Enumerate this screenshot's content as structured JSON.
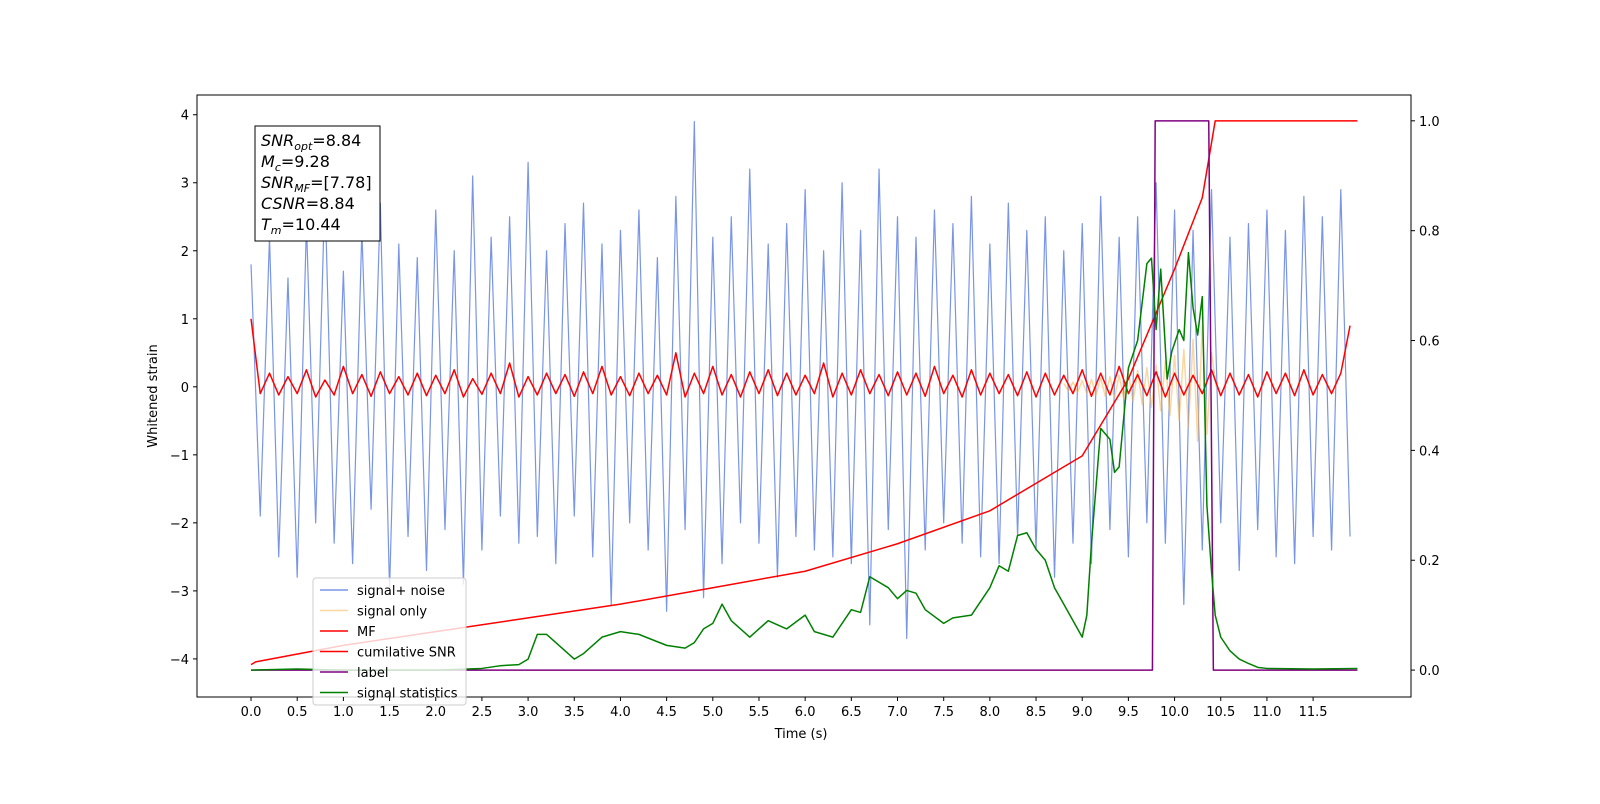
{
  "chart_data": {
    "type": "line",
    "xlabel": "Time (s)",
    "ylabel": "Whitened strain",
    "xlim": [
      -0.585,
      12.56
    ],
    "ylim": [
      -4.56,
      4.29
    ],
    "y2lim": [
      -0.049,
      1.047
    ],
    "xticks": [
      {
        "value": 0,
        "label": "0.0"
      },
      0.5,
      {
        "value": 1,
        "label": "1.0"
      },
      1.5,
      {
        "value": 2,
        "label": "2.0"
      },
      2.5,
      {
        "value": 3,
        "label": "3.0"
      },
      3.5,
      {
        "value": 4,
        "label": "4.0"
      },
      4.5,
      {
        "value": 5,
        "label": "5.0"
      },
      5.5,
      {
        "value": 6,
        "label": "6.0"
      },
      6.5,
      {
        "value": 7,
        "label": "7.0"
      },
      7.5,
      {
        "value": 8,
        "label": "8.0"
      },
      8.5,
      {
        "value": 9,
        "label": "9.0"
      },
      9.5,
      {
        "value": 10,
        "label": "10.0"
      },
      10.5,
      {
        "value": 11,
        "label": "11.0"
      },
      11.5
    ],
    "yticks": [
      {
        "value": -4,
        "label": "−4"
      },
      {
        "value": -3,
        "label": "−3"
      },
      {
        "value": -2,
        "label": "−2"
      },
      {
        "value": -1,
        "label": "−1"
      },
      0,
      1,
      2,
      3,
      4
    ],
    "y2ticks": [
      {
        "value": 0,
        "label": "0.0"
      },
      0.2,
      0.4,
      0.6,
      0.8,
      {
        "value": 1,
        "label": "1.0"
      }
    ],
    "annotation": [
      {
        "main": "SNR",
        "sub": "opt",
        "text": "=8.84"
      },
      {
        "main": "M",
        "sub": "c",
        "text": "=9.28"
      },
      {
        "main": "SNR",
        "sub": "MF",
        "text": "=[7.78]"
      },
      {
        "main": "CSNR",
        "text": "=8.84"
      },
      {
        "main": "T",
        "sub": "m",
        "text": "=10.44"
      }
    ],
    "x": [
      0,
      0.1,
      0.2,
      0.3,
      0.4,
      0.5,
      0.6,
      0.7,
      0.8,
      0.9,
      1,
      1.1,
      1.2,
      1.3,
      1.4,
      1.5,
      1.6,
      1.7,
      1.8,
      1.9,
      2,
      2.1,
      2.2,
      2.3,
      2.4,
      2.5,
      2.6,
      2.7,
      2.8,
      2.9,
      3,
      3.1,
      3.2,
      3.3,
      3.4,
      3.5,
      3.6,
      3.7,
      3.8,
      3.9,
      4,
      4.1,
      4.2,
      4.3,
      4.4,
      4.5,
      4.6,
      4.7,
      4.8,
      4.9,
      5,
      5.1,
      5.2,
      5.3,
      5.4,
      5.5,
      5.6,
      5.7,
      5.8,
      5.9,
      6,
      6.1,
      6.2,
      6.3,
      6.4,
      6.5,
      6.6,
      6.7,
      6.8,
      6.9,
      7,
      7.1,
      7.2,
      7.3,
      7.4,
      7.5,
      7.6,
      7.7,
      7.8,
      7.9,
      8,
      8.1,
      8.2,
      8.3,
      8.4,
      8.5,
      8.6,
      8.7,
      8.8,
      8.9,
      9,
      9.1,
      9.2,
      9.3,
      9.4,
      9.5,
      9.6,
      9.7,
      9.8,
      9.9,
      10,
      10.1,
      10.2,
      10.3,
      10.4,
      10.5,
      10.6,
      10.7,
      10.8,
      10.9,
      11,
      11.1,
      11.2,
      11.3,
      11.4,
      11.5,
      11.6,
      11.7,
      11.8,
      11.9
    ],
    "series": [
      {
        "name": "signal+ noise",
        "color": "#6a8ae6",
        "values": [
          1.8,
          -1.9,
          2.2,
          -2.5,
          1.6,
          -2.8,
          2.4,
          -2.0,
          2.9,
          -2.3,
          1.7,
          -2.6,
          2.3,
          -1.8,
          2.7,
          -3.0,
          2.1,
          -2.2,
          1.9,
          -2.7,
          2.6,
          -2.1,
          2.0,
          -2.9,
          3.1,
          -2.4,
          2.2,
          -1.9,
          2.5,
          -2.3,
          3.3,
          -2.2,
          2.0,
          -2.6,
          2.4,
          -1.9,
          2.7,
          -2.5,
          2.1,
          -3.2,
          2.3,
          -2.0,
          2.6,
          -2.4,
          1.9,
          -3.3,
          2.8,
          -2.1,
          3.9,
          -3.1,
          2.2,
          -2.6,
          2.5,
          -2.0,
          3.2,
          -2.3,
          2.1,
          -2.8,
          2.4,
          -2.2,
          2.9,
          -2.4,
          2.0,
          -2.5,
          3.0,
          -2.6,
          2.3,
          -3.5,
          3.2,
          -2.1,
          2.5,
          -3.7,
          2.2,
          -2.4,
          2.6,
          -2.0,
          2.4,
          -2.3,
          2.8,
          -2.5,
          2.1,
          -2.6,
          2.7,
          -2.2,
          2.3,
          -2.4,
          2.5,
          -2.8,
          2.0,
          -2.3,
          2.4,
          -2.6,
          2.8,
          -2.1,
          2.2,
          -2.5,
          2.5,
          -2.0,
          3.0,
          -2.3,
          2.6,
          -3.2,
          2.3,
          -2.4,
          2.9,
          -2.0,
          2.2,
          -2.7,
          2.4,
          -2.1,
          2.6,
          -2.5,
          2.3,
          -2.6,
          2.8,
          -2.2,
          2.5,
          -2.4,
          2.9,
          -2.2
        ]
      },
      {
        "name": "signal only",
        "color": "#f5b041",
        "x": [
          8.8,
          8.85,
          8.9,
          8.95,
          9,
          9.05,
          9.1,
          9.15,
          9.2,
          9.25,
          9.3,
          9.35,
          9.4,
          9.45,
          9.5,
          9.55,
          9.6,
          9.65,
          9.7,
          9.75,
          9.8,
          9.85,
          9.9,
          9.95,
          10,
          10.05,
          10.1,
          10.15,
          10.2,
          10.25,
          10.3,
          10.35,
          10.4,
          10.45
        ],
        "values": [
          0.05,
          -0.06,
          0.07,
          -0.08,
          0.09,
          -0.1,
          0.11,
          -0.12,
          0.13,
          -0.14,
          0.15,
          -0.16,
          0.17,
          -0.18,
          0.2,
          -0.22,
          0.24,
          -0.26,
          0.28,
          -0.3,
          0.32,
          -0.35,
          0.38,
          -0.42,
          0.46,
          -0.5,
          0.55,
          -0.6,
          0.7,
          -0.8,
          0.9,
          -0.7,
          0.5,
          0
        ]
      },
      {
        "name": "MF",
        "color": "#ff0000",
        "values": [
          1.0,
          -0.1,
          0.2,
          -0.12,
          0.15,
          -0.1,
          0.25,
          -0.15,
          0.1,
          -0.12,
          0.3,
          -0.1,
          0.18,
          -0.14,
          0.22,
          -0.1,
          0.15,
          -0.12,
          0.2,
          -0.13,
          0.17,
          -0.1,
          0.25,
          -0.15,
          0.12,
          -0.11,
          0.2,
          -0.1,
          0.35,
          -0.15,
          0.15,
          -0.12,
          0.2,
          -0.1,
          0.18,
          -0.14,
          0.22,
          -0.1,
          0.3,
          -0.12,
          0.15,
          -0.13,
          0.2,
          -0.1,
          0.17,
          -0.12,
          0.5,
          -0.15,
          0.2,
          -0.1,
          0.3,
          -0.12,
          0.18,
          -0.15,
          0.22,
          -0.1,
          0.25,
          -0.13,
          0.2,
          -0.12,
          0.17,
          -0.1,
          0.35,
          -0.15,
          0.2,
          -0.12,
          0.25,
          -0.1,
          0.18,
          -0.13,
          0.22,
          -0.12,
          0.2,
          -0.14,
          0.3,
          -0.1,
          0.17,
          -0.15,
          0.25,
          -0.12,
          0.2,
          -0.1,
          0.18,
          -0.13,
          0.22,
          -0.15,
          0.2,
          -0.12,
          0.17,
          -0.1,
          0.25,
          -0.14,
          0.2,
          -0.12,
          0.3,
          -0.1,
          0.18,
          -0.13,
          0.22,
          -0.15,
          0.2,
          -0.12,
          0.17,
          -0.1,
          0.25,
          -0.13,
          0.2,
          -0.12,
          0.18,
          -0.15,
          0.22,
          -0.1,
          0.2,
          -0.13,
          0.25,
          -0.12,
          0.18,
          -0.1,
          0.2,
          0.9
        ]
      },
      {
        "name": "cumilative SNR",
        "color": "#ff0000",
        "axis": "y2",
        "x": [
          0,
          0.05,
          1,
          2,
          3,
          4,
          5,
          6,
          7,
          8,
          9,
          9.5,
          10,
          10.3,
          10.44,
          11.98
        ],
        "values": [
          0.01,
          0.015,
          0.045,
          0.07,
          0.095,
          0.12,
          0.15,
          0.18,
          0.23,
          0.29,
          0.39,
          0.53,
          0.73,
          0.86,
          1.0,
          1.0
        ]
      },
      {
        "name": "label",
        "color": "#800080",
        "axis": "y2",
        "x": [
          0,
          9.76,
          9.79,
          10.37,
          10.42,
          11.98
        ],
        "values": [
          0,
          0,
          1,
          1,
          0,
          0
        ]
      },
      {
        "name": "signal statistics",
        "color": "#008000",
        "axis": "y2",
        "x": [
          0,
          0.5,
          1,
          2,
          2.5,
          2.7,
          2.9,
          3.0,
          3.1,
          3.2,
          3.3,
          3.5,
          3.6,
          3.8,
          4.0,
          4.2,
          4.5,
          4.7,
          4.8,
          4.9,
          5.0,
          5.1,
          5.2,
          5.4,
          5.6,
          5.8,
          6.0,
          6.1,
          6.3,
          6.5,
          6.6,
          6.7,
          6.9,
          7.0,
          7.1,
          7.2,
          7.3,
          7.5,
          7.6,
          7.8,
          8.0,
          8.1,
          8.2,
          8.3,
          8.4,
          8.5,
          8.6,
          8.7,
          8.8,
          9.0,
          9.05,
          9.1,
          9.2,
          9.3,
          9.35,
          9.4,
          9.5,
          9.6,
          9.7,
          9.75,
          9.8,
          9.85,
          9.92,
          9.97,
          10.05,
          10.1,
          10.15,
          10.2,
          10.25,
          10.3,
          10.35,
          10.4,
          10.44,
          10.5,
          10.6,
          10.7,
          10.8,
          10.9,
          11.0,
          11.5,
          11.98
        ],
        "values": [
          0.0,
          0.002,
          0.0,
          0.0,
          0.003,
          0.008,
          0.01,
          0.02,
          0.065,
          0.065,
          0.05,
          0.02,
          0.03,
          0.06,
          0.07,
          0.065,
          0.045,
          0.04,
          0.05,
          0.075,
          0.085,
          0.12,
          0.09,
          0.06,
          0.09,
          0.075,
          0.1,
          0.07,
          0.06,
          0.11,
          0.105,
          0.17,
          0.15,
          0.13,
          0.145,
          0.14,
          0.11,
          0.085,
          0.095,
          0.1,
          0.15,
          0.19,
          0.18,
          0.245,
          0.25,
          0.22,
          0.2,
          0.15,
          0.12,
          0.06,
          0.1,
          0.23,
          0.44,
          0.42,
          0.36,
          0.37,
          0.55,
          0.6,
          0.74,
          0.75,
          0.62,
          0.73,
          0.53,
          0.58,
          0.62,
          0.6,
          0.76,
          0.66,
          0.61,
          0.68,
          0.3,
          0.18,
          0.1,
          0.06,
          0.035,
          0.02,
          0.012,
          0.005,
          0.003,
          0.002,
          0.003
        ]
      }
    ]
  }
}
